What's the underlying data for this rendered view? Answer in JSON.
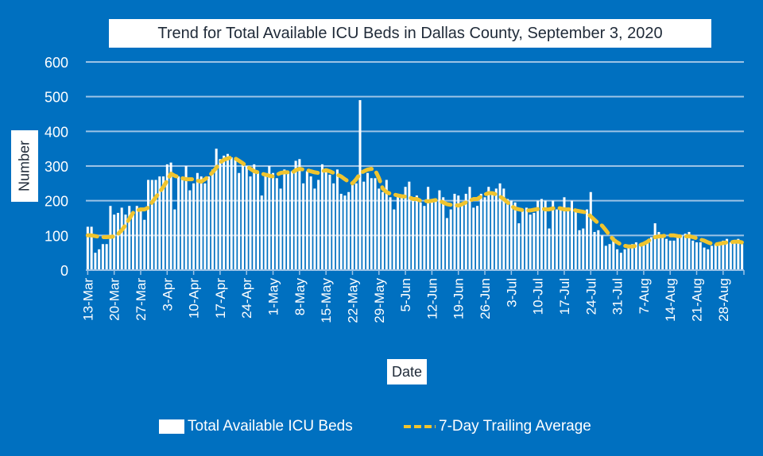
{
  "chart_data": {
    "type": "bar",
    "title": "Trend for Total Available ICU Beds in Dallas County, September 3, 2020",
    "xlabel": "Date",
    "ylabel": "Number",
    "ylim": [
      0,
      600
    ],
    "yticks": [
      0,
      100,
      200,
      300,
      400,
      500,
      600
    ],
    "grid": true,
    "legend_position": "bottom",
    "colors": {
      "background": "#0070c0",
      "bars": "#ffffff",
      "average_line": "#f0c42e",
      "gridlines": "#9dc3e6"
    },
    "x_start_date": "13-Mar",
    "xtick_labels": [
      "13-Mar",
      "20-Mar",
      "27-Mar",
      "3-Apr",
      "10-Apr",
      "17-Apr",
      "24-Apr",
      "1-May",
      "8-May",
      "15-May",
      "22-May",
      "29-May",
      "5-Jun",
      "12-Jun",
      "19-Jun",
      "26-Jun",
      "3-Jul",
      "10-Jul",
      "17-Jul",
      "24-Jul",
      "31-Jul",
      "7-Aug",
      "14-Aug",
      "21-Aug",
      "28-Aug"
    ],
    "series": [
      {
        "name": "Total Available ICU Beds",
        "type": "bar",
        "values": [
          125,
          125,
          50,
          60,
          75,
          75,
          185,
          160,
          165,
          180,
          160,
          185,
          170,
          185,
          180,
          145,
          260,
          260,
          260,
          270,
          270,
          305,
          310,
          175,
          270,
          265,
          300,
          230,
          250,
          280,
          270,
          250,
          270,
          290,
          350,
          320,
          330,
          335,
          325,
          320,
          280,
          310,
          300,
          270,
          305,
          280,
          215,
          280,
          300,
          280,
          265,
          235,
          290,
          280,
          285,
          315,
          320,
          250,
          285,
          270,
          235,
          260,
          305,
          290,
          275,
          250,
          290,
          220,
          215,
          225,
          245,
          250,
          490,
          255,
          280,
          265,
          265,
          235,
          225,
          260,
          210,
          175,
          220,
          215,
          240,
          255,
          205,
          215,
          195,
          185,
          240,
          195,
          200,
          230,
          210,
          150,
          175,
          220,
          215,
          190,
          220,
          240,
          180,
          185,
          220,
          210,
          240,
          225,
          235,
          250,
          235,
          205,
          200,
          195,
          135,
          175,
          180,
          160,
          165,
          200,
          205,
          200,
          120,
          200,
          175,
          175,
          210,
          180,
          200,
          170,
          115,
          120,
          175,
          225,
          110,
          115,
          100,
          70,
          75,
          95,
          60,
          50,
          60,
          70,
          75,
          80,
          75,
          75,
          85,
          95,
          135,
          110,
          95,
          90,
          85,
          85,
          95,
          100,
          105,
          110,
          85,
          80,
          80,
          65,
          60,
          70,
          75,
          75,
          85,
          90,
          80,
          85,
          90,
          75
        ]
      },
      {
        "name": "7-Day Trailing Average",
        "type": "line",
        "values": [
          100,
          100,
          98,
          96,
          95,
          95,
          96,
          97,
          104,
          115,
          130,
          148,
          165,
          172,
          175,
          175,
          180,
          195,
          210,
          225,
          240,
          258,
          278,
          272,
          268,
          265,
          262,
          262,
          262,
          258,
          255,
          262,
          270,
          282,
          295,
          310,
          318,
          322,
          325,
          322,
          315,
          308,
          300,
          292,
          285,
          282,
          278,
          275,
          272,
          270,
          275,
          280,
          282,
          282,
          280,
          288,
          292,
          290,
          288,
          285,
          282,
          280,
          285,
          288,
          285,
          280,
          275,
          270,
          262,
          255,
          250,
          262,
          278,
          285,
          290,
          292,
          288,
          265,
          235,
          225,
          220,
          218,
          215,
          213,
          212,
          210,
          205,
          205,
          200,
          200,
          198,
          200,
          202,
          200,
          195,
          190,
          188,
          188,
          186,
          190,
          195,
          200,
          205,
          205,
          212,
          218,
          222,
          222,
          218,
          212,
          205,
          195,
          185,
          178,
          175,
          173,
          172,
          172,
          174,
          176,
          178,
          175,
          175,
          178,
          180,
          178,
          175,
          175,
          176,
          172,
          170,
          168,
          165,
          155,
          145,
          135,
          128,
          115,
          100,
          88,
          80,
          74,
          70,
          68,
          68,
          70,
          72,
          76,
          82,
          90,
          95,
          97,
          98,
          100,
          100,
          100,
          98,
          97,
          97,
          98,
          95,
          92,
          88,
          85,
          80,
          76,
          74,
          76,
          78,
          80,
          80,
          82,
          82,
          80
        ]
      }
    ]
  },
  "legend": {
    "bars_label": "Total Available ICU Beds",
    "line_label": "7-Day Trailing Average"
  }
}
